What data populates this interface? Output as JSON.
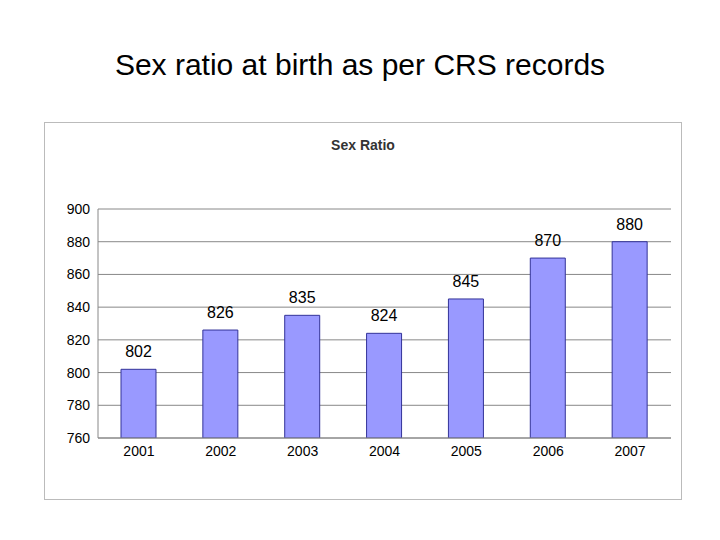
{
  "chart_data": {
    "type": "bar",
    "title": "Sex ratio at birth as per CRS records",
    "subtitle": "Sex Ratio",
    "categories": [
      "2001",
      "2002",
      "2003",
      "2004",
      "2005",
      "2006",
      "2007"
    ],
    "values": [
      802,
      826,
      835,
      824,
      845,
      870,
      880
    ],
    "color": "#9999ff",
    "ylim": [
      760,
      900
    ],
    "yticks": [
      760,
      780,
      800,
      820,
      840,
      860,
      880,
      900
    ],
    "grid": true,
    "data_labels": true
  }
}
